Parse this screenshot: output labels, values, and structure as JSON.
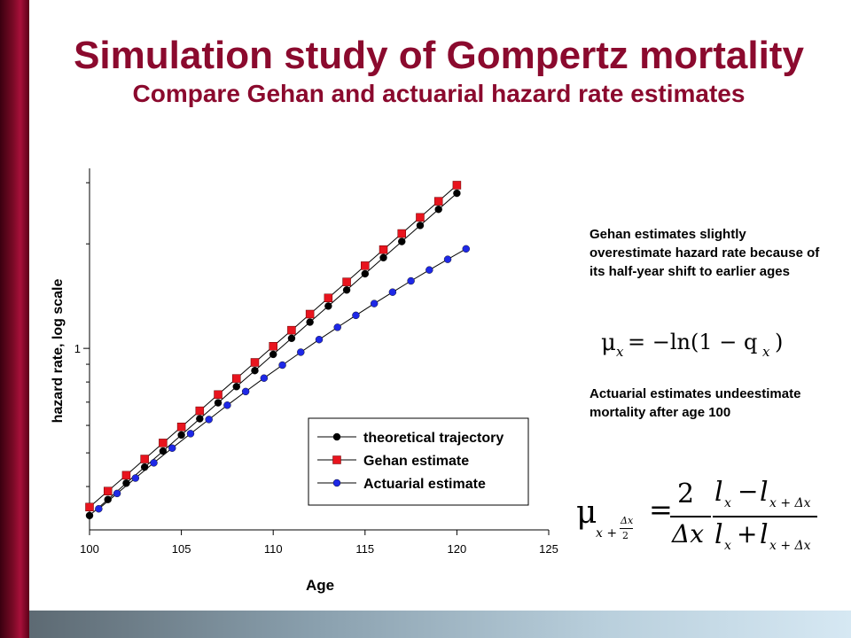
{
  "slide": {
    "title": "Simulation study of Gompertz mortality",
    "subtitle": "Compare Gehan and actuarial hazard rate estimates",
    "note1": "Gehan estimates slightly overestimate hazard rate because of its half-year shift to earlier ages",
    "note2": "Actuarial estimates undeestimate mortality after age 100"
  },
  "chart_data": {
    "type": "line",
    "xlabel": "Age",
    "ylabel": "hazard rate, log scale",
    "xlim": [
      100,
      125
    ],
    "y_scale": "log",
    "ylim": [
      0.3,
      3.3
    ],
    "x_ticks": [
      "100",
      "105",
      "110",
      "115",
      "120",
      "125"
    ],
    "y_ticks": [
      "1"
    ],
    "grid": false,
    "legend_position": "bottom-right",
    "series": [
      {
        "name": "theoretical trajectory",
        "marker": "circle",
        "color": "#000000",
        "x": [
          100,
          101,
          102,
          103,
          104,
          105,
          106,
          107,
          108,
          109,
          110,
          111,
          112,
          113,
          114,
          115,
          116,
          117,
          118,
          119,
          120
        ],
        "y": [
          0.33,
          0.367,
          0.409,
          0.455,
          0.506,
          0.563,
          0.627,
          0.697,
          0.776,
          0.863,
          0.961,
          1.069,
          1.19,
          1.324,
          1.473,
          1.64,
          1.825,
          2.031,
          2.26,
          2.515,
          2.798
        ]
      },
      {
        "name": "Gehan estimate",
        "marker": "square",
        "color": "#e8141e",
        "x": [
          100,
          101,
          102,
          103,
          104,
          105,
          106,
          107,
          108,
          109,
          110,
          111,
          112,
          113,
          114,
          115,
          116,
          117,
          118,
          119,
          120
        ],
        "y": [
          0.349,
          0.388,
          0.431,
          0.48,
          0.534,
          0.594,
          0.661,
          0.736,
          0.819,
          0.911,
          1.014,
          1.128,
          1.255,
          1.397,
          1.554,
          1.73,
          1.925,
          2.142,
          2.384,
          2.653,
          2.952
        ]
      },
      {
        "name": "Actuarial estimate",
        "marker": "circle",
        "color": "#1e28e6",
        "x": [
          100.5,
          101.5,
          102.5,
          103.5,
          104.5,
          105.5,
          106.5,
          107.5,
          108.5,
          109.5,
          110.5,
          111.5,
          112.5,
          113.5,
          114.5,
          115.5,
          116.5,
          117.5,
          118.5,
          119.5,
          120.5
        ],
        "y": [
          0.345,
          0.382,
          0.423,
          0.468,
          0.516,
          0.568,
          0.624,
          0.686,
          0.751,
          0.821,
          0.895,
          0.975,
          1.06,
          1.15,
          1.245,
          1.346,
          1.452,
          1.564,
          1.682,
          1.805,
          1.935
        ]
      }
    ]
  },
  "formulas": {
    "mu": "μ",
    "x": "x",
    "eq1_rhs": "= −ln(1 − q",
    "close": ")",
    "two": "2",
    "delta_x": "Δx",
    "lx": "l",
    "minus": "−",
    "plus": "+",
    "sub_shift": "x + Δx",
    "sub_half_num": "Δx",
    "sub_half_den": "2",
    "sub_half_prefix": "x +",
    "equals": "="
  }
}
